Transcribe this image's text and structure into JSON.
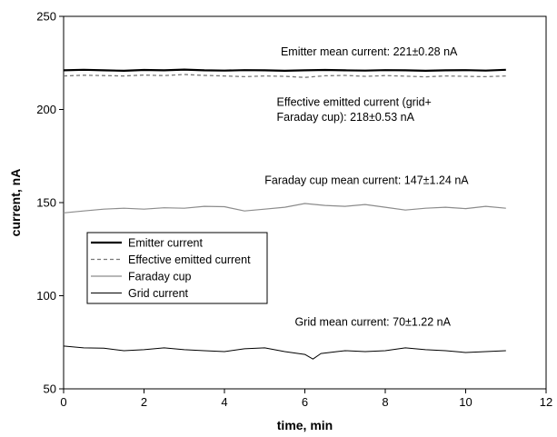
{
  "chart_data": {
    "type": "line",
    "title": "",
    "xlabel": "time, min",
    "ylabel": "current, nA",
    "xlim": [
      0,
      12
    ],
    "ylim": [
      50,
      250
    ],
    "xticks": [
      "0",
      "2",
      "4",
      "6",
      "8",
      "10",
      "12"
    ],
    "yticks": [
      "50",
      "100",
      "150",
      "200",
      "250"
    ],
    "grid": false,
    "legend_position": "left",
    "annotations": [
      {
        "text": "Emitter mean current: 221±0.28 nA",
        "x": 5.4,
        "y": 229
      },
      {
        "text": "Effective emitted current (grid+",
        "x": 5.3,
        "y": 202
      },
      {
        "text": "Faraday cup): 218±0.53 nA",
        "x": 5.3,
        "y": 194
      },
      {
        "text": "Faraday cup mean current: 147±1.24 nA",
        "x": 5.0,
        "y": 160
      },
      {
        "text": "Grid mean current: 70±1.22 nA",
        "x": 5.75,
        "y": 84
      }
    ],
    "series": [
      {
        "name": "Emitter current",
        "color": "#000000",
        "dash": "solid",
        "width": 2.2,
        "x": [
          0,
          0.5,
          1,
          1.5,
          2,
          2.5,
          3,
          3.5,
          4,
          4.5,
          5,
          5.5,
          6,
          6.5,
          7,
          7.5,
          8,
          8.5,
          9,
          9.5,
          10,
          10.5,
          11
        ],
        "y": [
          221,
          221.3,
          221,
          220.8,
          221.2,
          221,
          221.4,
          221,
          220.9,
          221.1,
          221,
          220.8,
          221,
          221.2,
          221,
          220.9,
          221.1,
          221,
          220.8,
          221,
          221.1,
          220.9,
          221.3
        ]
      },
      {
        "name": "Effective emitted current",
        "color": "#777777",
        "dash": "dashed",
        "width": 1.3,
        "x": [
          0,
          0.5,
          1,
          1.5,
          2,
          2.5,
          3,
          3.5,
          4,
          4.5,
          5,
          5.5,
          6,
          6.5,
          7,
          7.5,
          8,
          8.5,
          9,
          9.5,
          10,
          10.5,
          11
        ],
        "y": [
          218,
          218.4,
          218.2,
          218,
          218.5,
          218.2,
          218.8,
          218.3,
          218,
          217.6,
          218,
          217.8,
          217.2,
          218.1,
          218.3,
          217.8,
          218.2,
          217.9,
          217.5,
          218,
          217.8,
          217.6,
          218
        ]
      },
      {
        "name": "Faraday cup",
        "color": "#8c8c8c",
        "dash": "solid",
        "width": 1.2,
        "x": [
          0,
          0.5,
          1,
          1.5,
          2,
          2.5,
          3,
          3.5,
          4,
          4.5,
          5,
          5.5,
          6,
          6.5,
          7,
          7.5,
          8,
          8.5,
          9,
          9.5,
          10,
          10.5,
          11
        ],
        "y": [
          144.5,
          145.5,
          146.5,
          147,
          146.5,
          147.2,
          147,
          148,
          147.8,
          145.5,
          146.5,
          147.5,
          149.5,
          148.5,
          148,
          149,
          147.5,
          146,
          147,
          147.5,
          146.8,
          148,
          147
        ]
      },
      {
        "name": "Grid current",
        "color": "#000000",
        "dash": "solid",
        "width": 1.0,
        "x": [
          0,
          0.5,
          1,
          1.5,
          2,
          2.5,
          3,
          3.5,
          4,
          4.5,
          5,
          5.5,
          6,
          6.2,
          6.4,
          6.8,
          7,
          7.5,
          8,
          8.5,
          9,
          9.5,
          10,
          10.5,
          11
        ],
        "y": [
          73,
          72,
          71.8,
          70.5,
          71,
          72,
          71,
          70.5,
          70,
          71.5,
          72,
          70,
          68.5,
          66,
          69,
          70,
          70.5,
          70,
          70.5,
          72,
          71,
          70.5,
          69.5,
          70,
          70.5
        ]
      }
    ]
  }
}
